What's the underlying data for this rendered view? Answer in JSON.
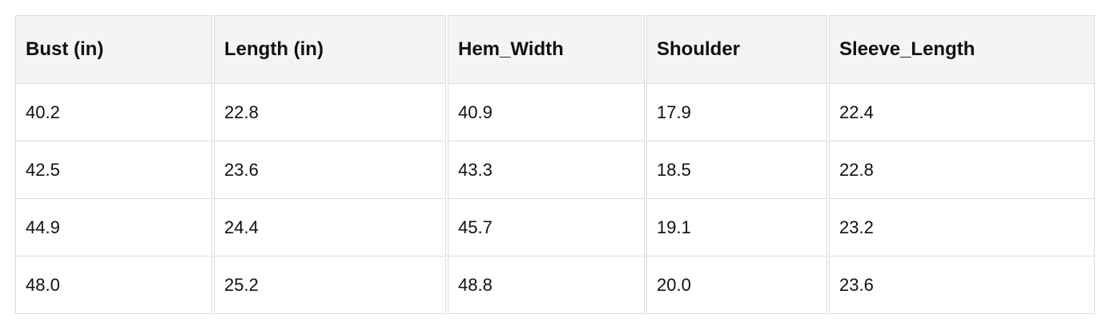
{
  "table": {
    "headers": [
      "Bust (in)",
      "Length (in)",
      "Hem_Width",
      "Shoulder",
      "Sleeve_Length"
    ],
    "rows": [
      [
        "40.2",
        "22.8",
        "40.9",
        "17.9",
        "22.4"
      ],
      [
        "42.5",
        "23.6",
        "43.3",
        "18.5",
        "22.8"
      ],
      [
        "44.9",
        "24.4",
        "45.7",
        "19.1",
        "23.2"
      ],
      [
        "48.0",
        "25.2",
        "48.8",
        "20.0",
        "23.6"
      ]
    ]
  }
}
